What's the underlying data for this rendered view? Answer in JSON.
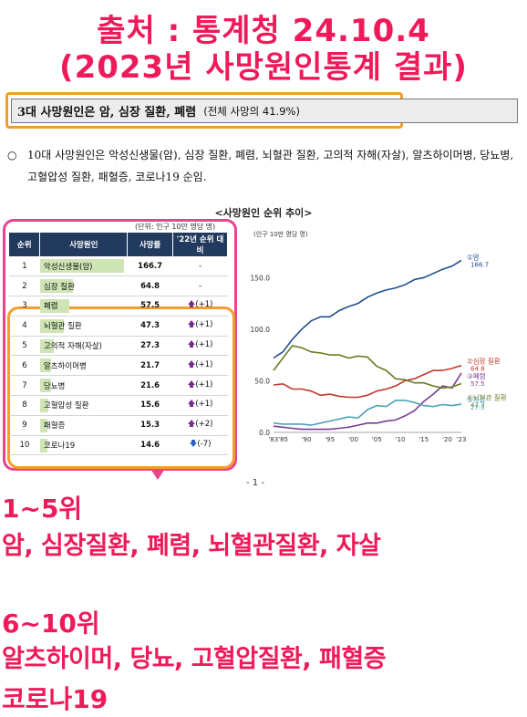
{
  "header": {
    "source_line": "출처 : 통계청 24.10.4",
    "subtitle_line": "(2023년 사망원인통계 결과)"
  },
  "summary": {
    "headline": "3대 사망원인은 암, 심장 질환, 폐렴",
    "note": "(전체 사망의 41.9%)"
  },
  "bullet": {
    "mark": "○",
    "text": "10대 사망원인은 악성신생물(암), 심장 질환, 폐렴, 뇌혈관 질환, 고의적 자해(자살), 알츠하이머병, 당뇨병, 고혈압성 질환, 패혈증, 코로나19 순임."
  },
  "figure": {
    "title": "<사망원인 순위 추이>",
    "unit_table": "(단위: 인구 10만 명당 명)",
    "unit_chart": "(인구 10만 명당 명)",
    "page_number": "- 1 -"
  },
  "table": {
    "headers": [
      "순위",
      "사망원인",
      "사망률",
      "'22년 순위 대비"
    ],
    "rows": [
      {
        "rank": "1",
        "cause": "악성신생물(암)",
        "rate": "166.7",
        "change": "-",
        "dir": "none"
      },
      {
        "rank": "2",
        "cause": "심장 질환",
        "rate": "64.8",
        "change": "-",
        "dir": "none"
      },
      {
        "rank": "3",
        "cause": "폐렴",
        "rate": "57.5",
        "change": "(+1)",
        "dir": "up"
      },
      {
        "rank": "4",
        "cause": "뇌혈관 질환",
        "rate": "47.3",
        "change": "(+1)",
        "dir": "up"
      },
      {
        "rank": "5",
        "cause": "고의적 자해(자살)",
        "rate": "27.3",
        "change": "(+1)",
        "dir": "up"
      },
      {
        "rank": "6",
        "cause": "알츠하이머병",
        "rate": "21.7",
        "change": "(+1)",
        "dir": "up"
      },
      {
        "rank": "7",
        "cause": "당뇨병",
        "rate": "21.6",
        "change": "(+1)",
        "dir": "up"
      },
      {
        "rank": "8",
        "cause": "고혈압성 질환",
        "rate": "15.6",
        "change": "(+1)",
        "dir": "up"
      },
      {
        "rank": "9",
        "cause": "패혈증",
        "rate": "15.3",
        "change": "(+2)",
        "dir": "up"
      },
      {
        "rank": "10",
        "cause": "코로나19",
        "rate": "14.6",
        "change": "(-7)",
        "dir": "down"
      }
    ]
  },
  "chart_data": {
    "type": "line",
    "ylabel": "(인구 10만 명당 명)",
    "ylim": [
      0,
      175
    ],
    "yticks": [
      "0.0",
      "50.0",
      "100.0",
      "150.0"
    ],
    "xticks": [
      "'83'85",
      "'90",
      "'95",
      "'00",
      "'05",
      "'10",
      "'15",
      "'20",
      "'23"
    ],
    "x": [
      1983,
      1985,
      1987,
      1989,
      1991,
      1993,
      1995,
      1997,
      1999,
      2001,
      2003,
      2005,
      2007,
      2009,
      2011,
      2013,
      2015,
      2017,
      2019,
      2021,
      2023
    ],
    "series": [
      {
        "name": "①암",
        "end_label": "166.7",
        "color": "#1f4e8c",
        "values": [
          72,
          78,
          90,
          100,
          108,
          112,
          112,
          118,
          122,
          125,
          131,
          135,
          138,
          140,
          143,
          148,
          150,
          154,
          158,
          161,
          166.7
        ]
      },
      {
        "name": "②심장 질환",
        "end_label": "64.8",
        "color": "#c0392b",
        "values": [
          46,
          47,
          42,
          42,
          40,
          36,
          37,
          35,
          34,
          34,
          36,
          40,
          42,
          45,
          50,
          52,
          56,
          60,
          60,
          62,
          64.8
        ]
      },
      {
        "name": "③폐렴",
        "end_label": "57.5",
        "color": "#7a3c96",
        "values": [
          6,
          5,
          4,
          3,
          3,
          3,
          3,
          4,
          5,
          7,
          9,
          9,
          11,
          12,
          16,
          21,
          30,
          37,
          45,
          43,
          57.5
        ]
      },
      {
        "name": "④뇌혈관 질환",
        "end_label": "47.3",
        "color": "#6b7a22",
        "values": [
          60,
          72,
          84,
          82,
          78,
          77,
          75,
          75,
          72,
          74,
          73,
          64,
          60,
          52,
          51,
          48,
          48,
          45,
          43,
          44,
          47.3
        ]
      },
      {
        "name": "⑤자살",
        "end_label": "27.3",
        "color": "#4aa3b8",
        "values": [
          9,
          8,
          8,
          8,
          7,
          9,
          11,
          13,
          15,
          14,
          22,
          26,
          25,
          31,
          31,
          29,
          26,
          25,
          27,
          26,
          27.3
        ]
      }
    ]
  },
  "ranks": {
    "top_title": "1~5위",
    "top_list": "암, 심장질환, 폐렴, 뇌혈관질환, 자살",
    "next_title": "6~10위",
    "next_list": "알츠하이머, 당뇨, 고혈압질환, 패혈증",
    "next_list_2": "코로나19"
  },
  "colors": {
    "accent_pink": "#ef1a5a",
    "frame_orange": "#f59d2a",
    "table_header": "#223a5e",
    "bar_green": "#cfe5b5"
  }
}
